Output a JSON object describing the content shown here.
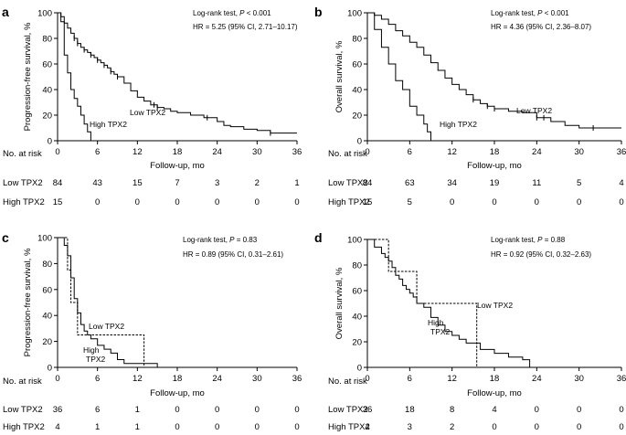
{
  "chart_data": [
    {
      "panel": "a",
      "type": "line",
      "step": true,
      "ylabel": "Progression-free survival, %",
      "xlabel": "Follow-up, mo",
      "xlim": [
        0,
        36
      ],
      "ylim": [
        0,
        100
      ],
      "xticks": [
        0,
        6,
        12,
        18,
        24,
        30,
        36
      ],
      "yticks": [
        0,
        20,
        40,
        60,
        80,
        100
      ],
      "stats": {
        "line1_prefix": "Log-rank test, ",
        "line1_p": "P",
        "line1_suffix": " < 0.001",
        "line2": "HR = 5.25 (95% CI, 2.71–10.17)"
      },
      "series": [
        {
          "name": "Low TPX2",
          "label": "Low TPX2",
          "dash": "solid",
          "x": [
            0,
            0.5,
            1,
            1.5,
            2,
            2.5,
            3,
            3.5,
            4,
            4.5,
            5,
            5.5,
            6,
            6.5,
            7,
            7.5,
            8,
            8.5,
            9,
            10,
            11,
            12,
            13,
            14,
            15,
            16,
            17,
            18,
            20,
            22,
            24,
            25,
            26,
            28,
            30,
            32,
            36
          ],
          "y": [
            100,
            97,
            92,
            88,
            84,
            80,
            76,
            73,
            71,
            69,
            67,
            65,
            63,
            61,
            59,
            57,
            54,
            52,
            50,
            45,
            39,
            34,
            31,
            28,
            26,
            25,
            23,
            22,
            20,
            18,
            15,
            12,
            11,
            9,
            8,
            6,
            6
          ],
          "censor_x": [
            2.5,
            3,
            4,
            5,
            6,
            7,
            8,
            9,
            14.5,
            15,
            22.5,
            32
          ]
        },
        {
          "name": "High TPX2",
          "label": "High TPX2",
          "dash": "solid",
          "x": [
            0,
            0.5,
            1,
            1.5,
            2,
            2.5,
            3,
            3.5,
            4,
            4.5,
            5
          ],
          "y": [
            100,
            93,
            67,
            53,
            40,
            33,
            27,
            20,
            13,
            7,
            0
          ],
          "censor_x": []
        }
      ],
      "risk_table": {
        "header": "No. at risk",
        "rows": [
          {
            "label": "Low TPX2",
            "values": [
              84,
              43,
              15,
              7,
              3,
              2,
              1
            ]
          },
          {
            "label": "High TPX2",
            "values": [
              15,
              0,
              0,
              0,
              0,
              0,
              0
            ]
          }
        ]
      }
    },
    {
      "panel": "b",
      "type": "line",
      "step": true,
      "ylabel": "Overall survival, %",
      "xlabel": "Follow-up, mo",
      "xlim": [
        0,
        36
      ],
      "ylim": [
        0,
        100
      ],
      "xticks": [
        0,
        6,
        12,
        18,
        24,
        30,
        36
      ],
      "yticks": [
        0,
        20,
        40,
        60,
        80,
        100
      ],
      "stats": {
        "line1_prefix": "Log-rank test, ",
        "line1_p": "P",
        "line1_suffix": " < 0.001",
        "line2": "HR = 4.36 (95% CI, 2.36–8.07)"
      },
      "series": [
        {
          "name": "Low TPX2",
          "label": "Low TPX2",
          "dash": "solid",
          "x": [
            0,
            1,
            2,
            3,
            4,
            5,
            6,
            7,
            8,
            9,
            10,
            11,
            12,
            13,
            14,
            15,
            16,
            17,
            18,
            20,
            22,
            24,
            26,
            28,
            30,
            36
          ],
          "y": [
            100,
            98,
            95,
            91,
            86,
            82,
            77,
            73,
            67,
            61,
            55,
            49,
            44,
            40,
            36,
            32,
            29,
            27,
            25,
            23,
            22,
            18,
            15,
            12,
            10,
            10
          ],
          "censor_x": [
            15,
            17,
            18,
            24,
            25,
            32
          ]
        },
        {
          "name": "High TPX2",
          "label": "High TPX2",
          "dash": "solid",
          "x": [
            0,
            1,
            2,
            3,
            4,
            5,
            6,
            7,
            8,
            8.5,
            9
          ],
          "y": [
            100,
            87,
            73,
            60,
            47,
            40,
            27,
            20,
            13,
            7,
            0
          ],
          "censor_x": []
        }
      ],
      "risk_table": {
        "header": "No. at risk",
        "rows": [
          {
            "label": "Low TPX2",
            "values": [
              84,
              63,
              34,
              19,
              11,
              5,
              4
            ]
          },
          {
            "label": "High TPX2",
            "values": [
              15,
              5,
              0,
              0,
              0,
              0,
              0
            ]
          }
        ]
      }
    },
    {
      "panel": "c",
      "type": "line",
      "step": true,
      "ylabel": "Progression-free survival, %",
      "xlabel": "Follow-up, mo",
      "xlim": [
        0,
        36
      ],
      "ylim": [
        0,
        100
      ],
      "xticks": [
        0,
        6,
        12,
        18,
        24,
        30,
        36
      ],
      "yticks": [
        0,
        20,
        40,
        60,
        80,
        100
      ],
      "stats": {
        "line1_prefix": "Log-rank test, ",
        "line1_p": "P",
        "line1_suffix": " = 0.83",
        "line2": "HR = 0.89 (95% CI, 0.31–2.61)"
      },
      "series": [
        {
          "name": "Low TPX2",
          "label": "Low TPX2",
          "dash": "solid",
          "x": [
            0,
            1,
            1.5,
            2,
            2.5,
            3,
            3.5,
            4,
            4.5,
            5,
            6,
            7,
            8,
            9,
            10,
            12,
            14,
            15
          ],
          "y": [
            100,
            94,
            86,
            69,
            53,
            42,
            33,
            28,
            25,
            22,
            17,
            14,
            11,
            6,
            3,
            3,
            3,
            0
          ],
          "censor_x": []
        },
        {
          "name": "High TPX2",
          "label": "High TPX2",
          "dash": "dashed",
          "x": [
            0,
            1.5,
            2,
            3,
            13
          ],
          "y": [
            100,
            75,
            50,
            25,
            0
          ],
          "censor_x": []
        }
      ],
      "risk_table": {
        "header": "No. at risk",
        "rows": [
          {
            "label": "Low TPX2",
            "values": [
              36,
              6,
              1,
              0,
              0,
              0,
              0
            ]
          },
          {
            "label": "High TPX2",
            "values": [
              4,
              1,
              1,
              0,
              0,
              0,
              0
            ]
          }
        ]
      }
    },
    {
      "panel": "d",
      "type": "line",
      "step": true,
      "ylabel": "Overall survival, %",
      "xlabel": "Follow-up, mo",
      "xlim": [
        0,
        36
      ],
      "ylim": [
        0,
        100
      ],
      "xticks": [
        0,
        6,
        12,
        18,
        24,
        30,
        36
      ],
      "yticks": [
        0,
        20,
        40,
        60,
        80,
        100
      ],
      "stats": {
        "line1_prefix": "Log-rank test, ",
        "line1_p": "P",
        "line1_suffix": " = 0.88",
        "line2": "HR = 0.92 (95% CI, 0.32–2.63)"
      },
      "series": [
        {
          "name": "Low TPX2",
          "label": "Low TPX2",
          "dash": "solid",
          "x": [
            0,
            1,
            2,
            2.5,
            3,
            3.5,
            4,
            4.5,
            5,
            5.5,
            6,
            6.5,
            7,
            8,
            9,
            10,
            11,
            12,
            13,
            14,
            16,
            18,
            20,
            22,
            23
          ],
          "y": [
            100,
            94,
            89,
            86,
            83,
            78,
            72,
            69,
            64,
            61,
            58,
            55,
            50,
            47,
            39,
            33,
            28,
            25,
            22,
            19,
            14,
            11,
            8,
            6,
            0
          ],
          "censor_x": []
        },
        {
          "name": "High TPX2",
          "label": "High TPX2",
          "dash": "dashed",
          "x": [
            0,
            1,
            3,
            7,
            15,
            15.5
          ],
          "y": [
            100,
            100,
            75,
            50,
            50,
            0
          ],
          "censor_x": []
        }
      ],
      "risk_table": {
        "header": "No. at risk",
        "rows": [
          {
            "label": "Low TPX2",
            "values": [
              36,
              18,
              8,
              4,
              0,
              0,
              0
            ]
          },
          {
            "label": "High TPX2",
            "values": [
              4,
              3,
              2,
              0,
              0,
              0,
              0
            ]
          }
        ]
      }
    }
  ]
}
